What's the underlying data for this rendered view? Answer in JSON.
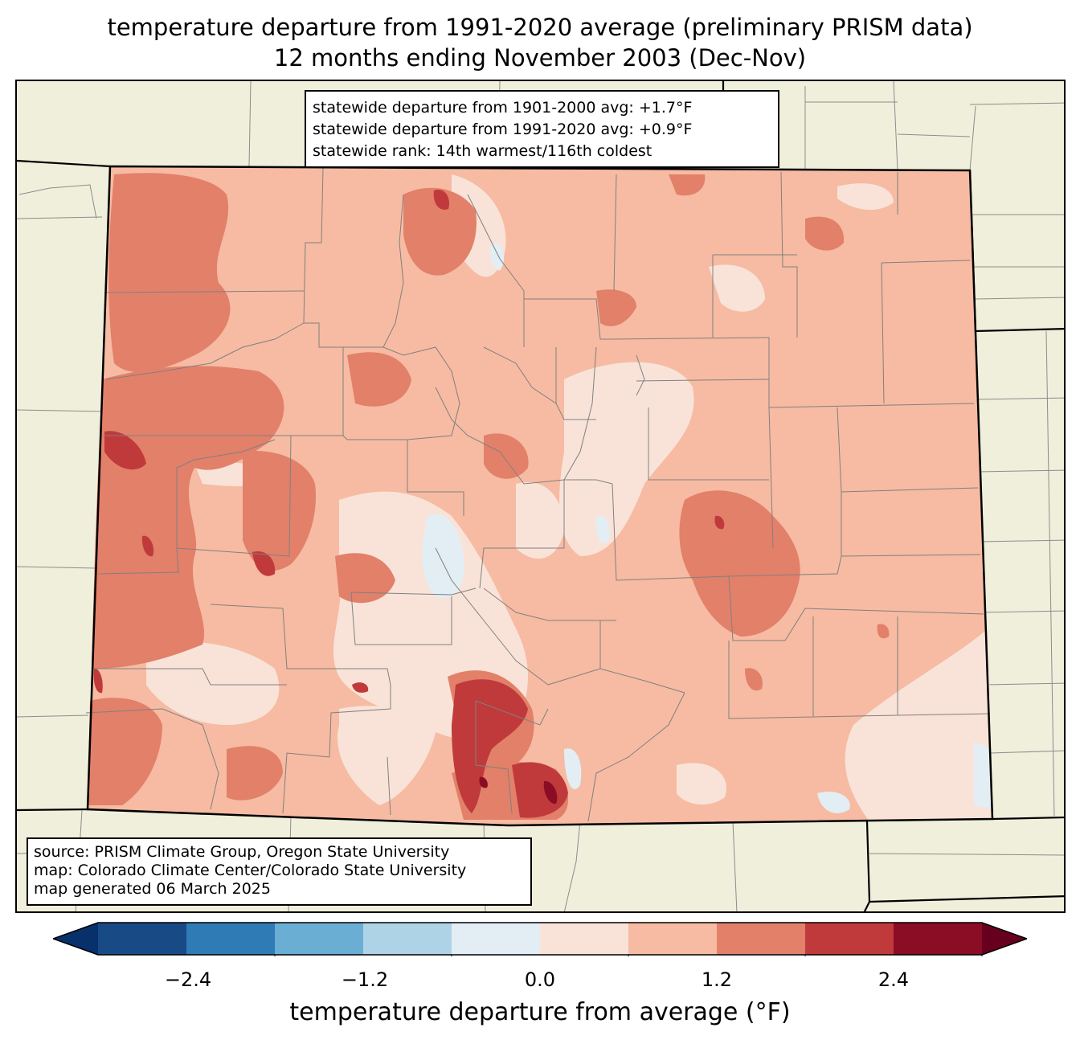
{
  "title_line1": "temperature departure from 1991-2020 average (preliminary PRISM data)",
  "title_line2": "12 months ending November 2003 (Dec-Nov)",
  "stats": {
    "line1": "statewide departure from 1901-2000 avg: +1.7°F",
    "line2": "statewide departure from 1991-2020 avg: +0.9°F",
    "line3": "statewide rank: 14th warmest/116th coldest"
  },
  "source": {
    "line1": "source: PRISM Climate Group, Oregon State University",
    "line2": "map: Colorado Climate Center/Colorado State University",
    "line3": "map generated 06 March 2025"
  },
  "colorbar": {
    "label": "temperature departure from average (°F)",
    "ticks": [
      "−2.4",
      "−1.2",
      "0.0",
      "1.2",
      "2.4"
    ],
    "colors": [
      "#08306b",
      "#184a86",
      "#2f7bb6",
      "#6aaed4",
      "#afd3e6",
      "#e3edf4",
      "#f9e3d8",
      "#f6bba2",
      "#e2806a",
      "#c03a3c",
      "#8a0d25",
      "#67001f"
    ]
  },
  "colors": {
    "land_outside": "#efefdc",
    "state_fill": "#f6bba2",
    "county_lines": "#808080",
    "state_border": "#000000"
  }
}
